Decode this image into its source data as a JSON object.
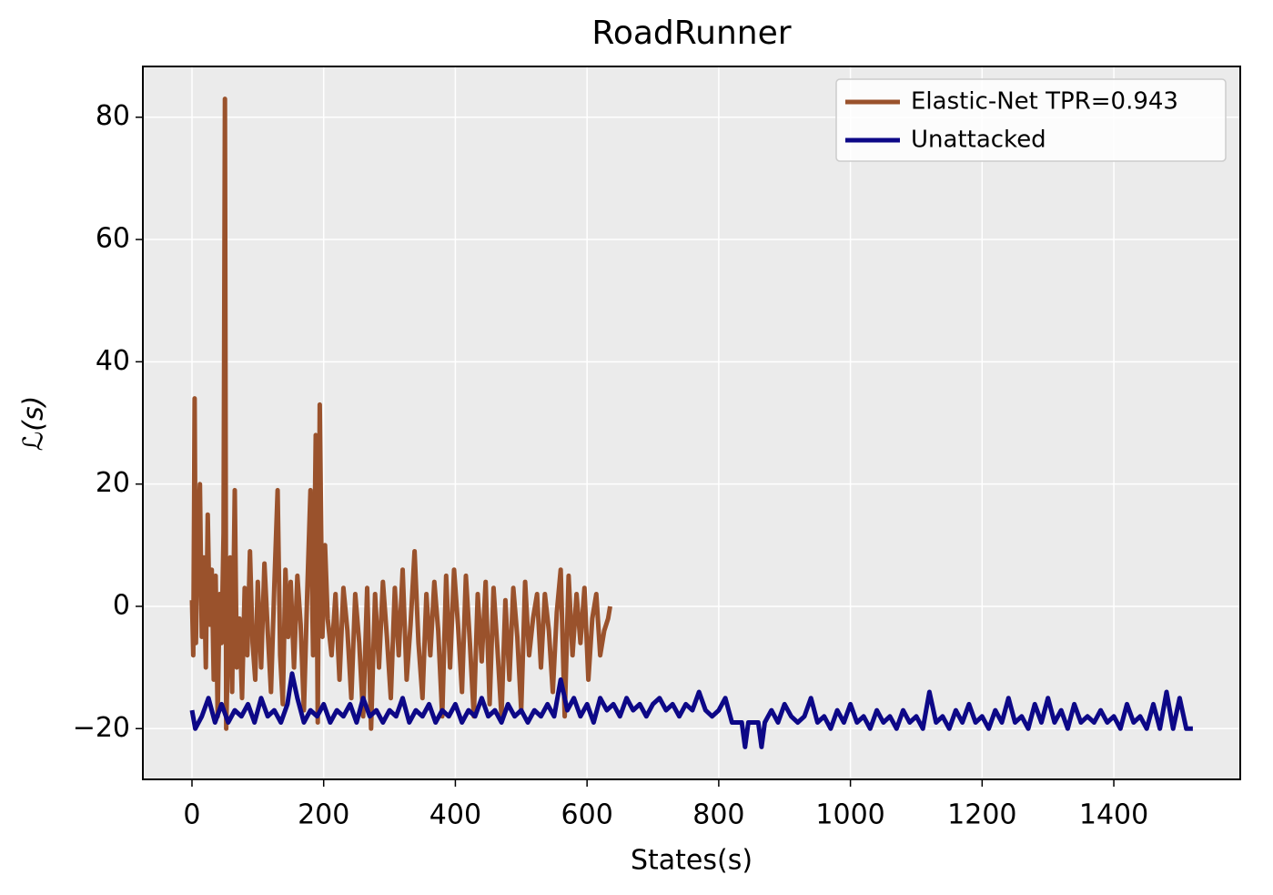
{
  "chart_data": {
    "type": "line",
    "title": "RoadRunner",
    "xlabel": "States(s)",
    "ylabel": "ℒ(s)",
    "xlim": [
      -74.6,
      1592
    ],
    "ylim": [
      -28.3,
      88.3
    ],
    "xticks": [
      0,
      200,
      400,
      600,
      800,
      1000,
      1200,
      1400
    ],
    "yticks": [
      {
        "value": -20,
        "label": "−20"
      },
      0,
      20,
      40,
      60,
      80
    ],
    "grid": true,
    "background": "#ebebeb",
    "legend": "upper right",
    "series": [
      {
        "name": "Elastic-Net TPR=0.943",
        "color": "#9a522c",
        "x": [
          0,
          2,
          4,
          6,
          9,
          12,
          15,
          18,
          21,
          24,
          27,
          30,
          33,
          36,
          39,
          42,
          45,
          48,
          50,
          52,
          55,
          58,
          61,
          65,
          68,
          72,
          76,
          80,
          84,
          88,
          92,
          96,
          100,
          105,
          110,
          115,
          120,
          125,
          130,
          134,
          138,
          142,
          146,
          150,
          155,
          160,
          165,
          170,
          175,
          180,
          184,
          188,
          191,
          194,
          198,
          202,
          206,
          212,
          218,
          224,
          230,
          236,
          242,
          248,
          254,
          260,
          266,
          272,
          278,
          284,
          290,
          296,
          302,
          308,
          314,
          320,
          326,
          332,
          338,
          344,
          350,
          356,
          362,
          368,
          374,
          380,
          386,
          392,
          398,
          404,
          410,
          416,
          422,
          428,
          434,
          440,
          446,
          452,
          458,
          464,
          470,
          476,
          482,
          488,
          494,
          500,
          506,
          512,
          518,
          524,
          530,
          536,
          542,
          548,
          554,
          560,
          566,
          572,
          578,
          584,
          590,
          596,
          602,
          608,
          614,
          620,
          626,
          632,
          635
        ],
        "values": [
          1,
          -8,
          34,
          -6,
          12,
          20,
          -5,
          8,
          -10,
          15,
          -3,
          6,
          -12,
          5,
          -18,
          2,
          -6,
          12,
          83,
          -20,
          -5,
          8,
          -14,
          19,
          -10,
          -2,
          -15,
          3,
          -8,
          9,
          -6,
          -12,
          4,
          -10,
          7,
          -4,
          -14,
          3,
          19,
          -8,
          -16,
          6,
          -5,
          4,
          -10,
          5,
          -3,
          -17,
          2,
          19,
          -8,
          28,
          -19,
          33,
          -5,
          10,
          -2,
          -8,
          2,
          -12,
          3,
          -4,
          -15,
          2,
          -6,
          -18,
          3,
          -20,
          2,
          -10,
          4,
          -5,
          -15,
          3,
          -8,
          6,
          -12,
          -3,
          9,
          -6,
          -15,
          2,
          -8,
          4,
          -4,
          -18,
          5,
          -10,
          6,
          -3,
          -14,
          5,
          -6,
          -18,
          2,
          -9,
          4,
          -16,
          3,
          -7,
          -18,
          1,
          -12,
          3,
          -5,
          -17,
          4,
          -8,
          -2,
          2,
          -10,
          2,
          -4,
          -14,
          -1,
          6,
          -18,
          5,
          -8,
          2,
          -6,
          3,
          -12,
          -2,
          2,
          -8,
          -4,
          -2,
          0
        ]
      },
      {
        "name": "Unattacked",
        "color": "#0d0887",
        "x": [
          0,
          5,
          15,
          25,
          35,
          45,
          55,
          65,
          75,
          85,
          95,
          105,
          115,
          125,
          135,
          145,
          152,
          160,
          170,
          180,
          190,
          200,
          210,
          220,
          230,
          240,
          250,
          260,
          270,
          280,
          290,
          300,
          310,
          320,
          330,
          340,
          350,
          360,
          370,
          380,
          390,
          400,
          410,
          420,
          430,
          440,
          450,
          460,
          470,
          480,
          490,
          500,
          510,
          520,
          530,
          540,
          550,
          560,
          570,
          580,
          590,
          600,
          610,
          620,
          630,
          640,
          650,
          660,
          670,
          680,
          690,
          700,
          710,
          720,
          730,
          740,
          750,
          760,
          770,
          780,
          790,
          800,
          810,
          820,
          835,
          840,
          845,
          860,
          865,
          870,
          880,
          890,
          900,
          910,
          920,
          930,
          940,
          950,
          960,
          970,
          980,
          990,
          1000,
          1010,
          1020,
          1030,
          1040,
          1050,
          1060,
          1070,
          1080,
          1090,
          1100,
          1110,
          1120,
          1130,
          1140,
          1150,
          1160,
          1170,
          1180,
          1190,
          1200,
          1210,
          1220,
          1230,
          1240,
          1250,
          1260,
          1270,
          1280,
          1290,
          1300,
          1310,
          1320,
          1330,
          1340,
          1350,
          1360,
          1370,
          1380,
          1390,
          1400,
          1410,
          1420,
          1430,
          1440,
          1450,
          1460,
          1470,
          1480,
          1490,
          1500,
          1510,
          1520
        ],
        "values": [
          -17,
          -20,
          -18,
          -15,
          -19,
          -16,
          -19,
          -17,
          -18,
          -16,
          -19,
          -15,
          -18,
          -17,
          -19,
          -16,
          -11,
          -15,
          -19,
          -17,
          -18,
          -16,
          -19,
          -17,
          -18,
          -16,
          -19,
          -15,
          -18,
          -17,
          -19,
          -17,
          -18,
          -15,
          -19,
          -17,
          -18,
          -16,
          -19,
          -17,
          -18,
          -16,
          -19,
          -17,
          -18,
          -15,
          -18,
          -17,
          -19,
          -16,
          -18,
          -17,
          -19,
          -17,
          -18,
          -16,
          -18,
          -12,
          -17,
          -15,
          -18,
          -16,
          -19,
          -15,
          -17,
          -16,
          -18,
          -15,
          -17,
          -16,
          -18,
          -16,
          -15,
          -17,
          -16,
          -18,
          -16,
          -17,
          -14,
          -17,
          -18,
          -17,
          -15,
          -19,
          -19,
          -23,
          -19,
          -19,
          -23,
          -19,
          -17,
          -19,
          -16,
          -18,
          -19,
          -18,
          -15,
          -19,
          -18,
          -20,
          -17,
          -19,
          -16,
          -19,
          -18,
          -20,
          -17,
          -19,
          -18,
          -20,
          -17,
          -19,
          -18,
          -20,
          -14,
          -19,
          -18,
          -20,
          -17,
          -19,
          -16,
          -19,
          -18,
          -20,
          -17,
          -19,
          -15,
          -19,
          -18,
          -20,
          -16,
          -19,
          -15,
          -19,
          -17,
          -20,
          -16,
          -19,
          -18,
          -19,
          -17,
          -19,
          -18,
          -20,
          -16,
          -19,
          -18,
          -20,
          -16,
          -20,
          -14,
          -20,
          -15,
          -20,
          -20
        ]
      }
    ]
  }
}
